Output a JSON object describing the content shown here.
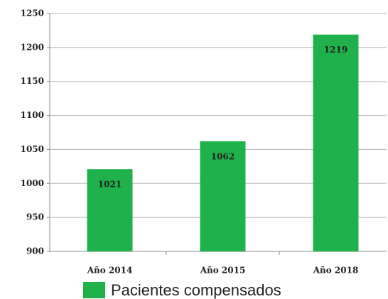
{
  "chart_data": {
    "type": "bar",
    "categories": [
      "Año 2014",
      "Año 2015",
      "Año 2018"
    ],
    "series": [
      {
        "name": "Pacientes compensados",
        "color": "#20b24a",
        "values": [
          1021,
          1062,
          1219
        ]
      }
    ],
    "ylim": [
      900,
      1250
    ],
    "yticks": [
      900,
      950,
      1000,
      1050,
      1100,
      1150,
      1200,
      1250
    ],
    "grid": true,
    "legend": "bottom"
  }
}
